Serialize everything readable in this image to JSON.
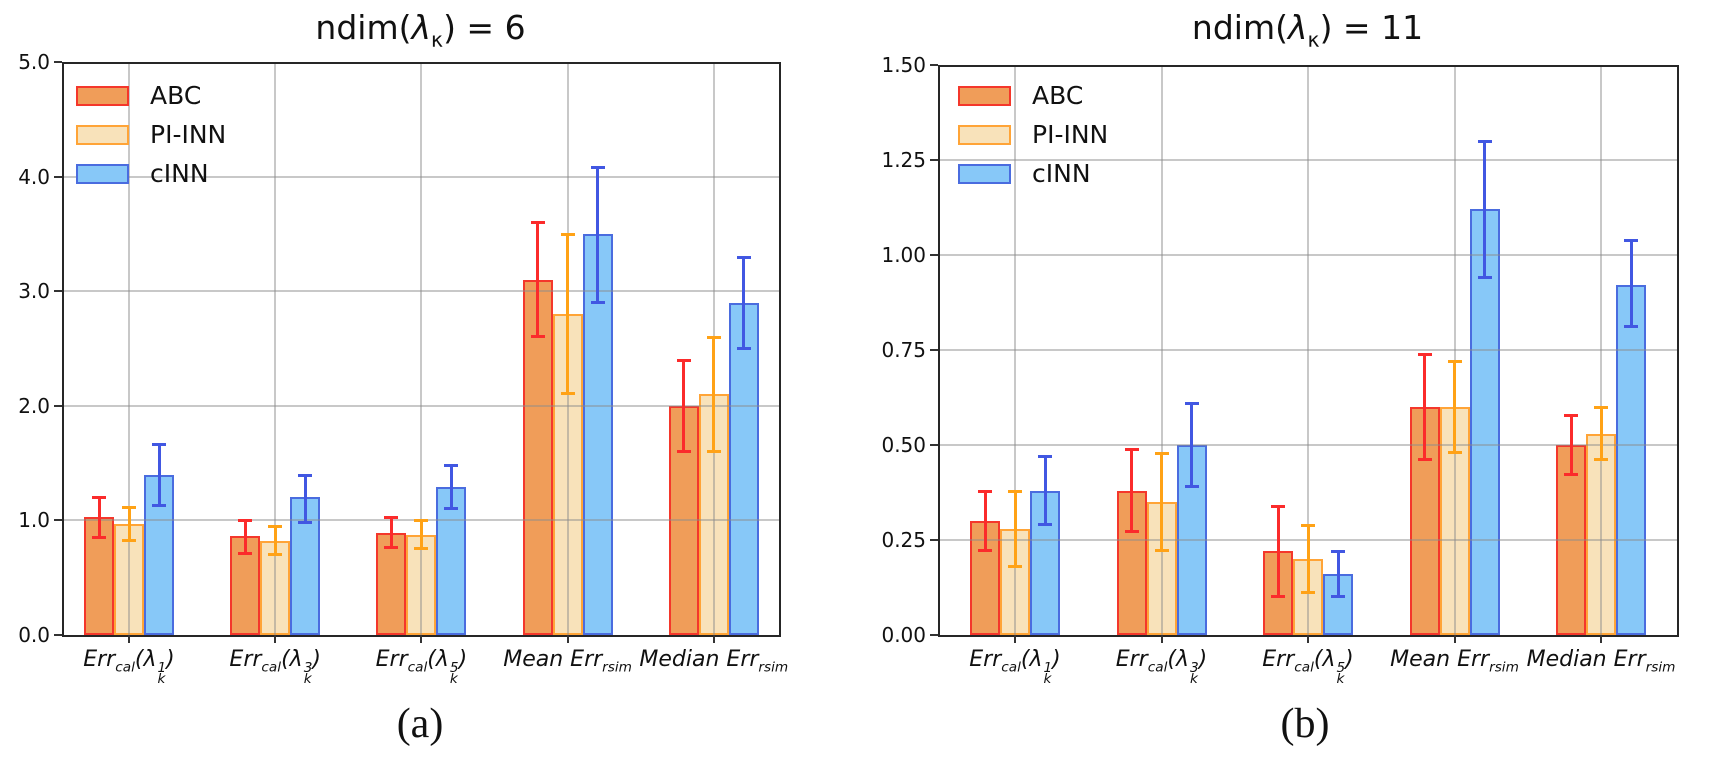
{
  "chart_data": [
    {
      "type": "bar",
      "title": "ndim(λ_{κ}) = 6",
      "caption": "(a)",
      "categories": [
        "Err_{cal}(λ_{k}^{1})",
        "Err_{cal}(λ_{k}^{3})",
        "Err_{cal}(λ_{k}^{5})",
        "Mean Err_{rsim}",
        "Median Err_{rsim}"
      ],
      "xlabel": "",
      "ylabel": "",
      "ylim": [
        0,
        5.0
      ],
      "ytick_labels": [
        "0.0",
        "1.0",
        "2.0",
        "3.0",
        "4.0",
        "5.0"
      ],
      "grid": true,
      "legend_position": "upper left",
      "error_bars": true,
      "series": [
        {
          "name": "ABC",
          "values": [
            1.03,
            0.86,
            0.89,
            3.1,
            2.0
          ],
          "err_low": [
            0.85,
            0.71,
            0.76,
            2.6,
            1.6
          ],
          "err_high": [
            1.2,
            1.0,
            1.03,
            3.6,
            2.4
          ]
        },
        {
          "name": "PI-INN",
          "values": [
            0.97,
            0.82,
            0.87,
            2.8,
            2.1
          ],
          "err_low": [
            0.82,
            0.7,
            0.75,
            2.1,
            1.6
          ],
          "err_high": [
            1.12,
            0.95,
            1.0,
            3.5,
            2.6
          ]
        },
        {
          "name": "cINN",
          "values": [
            1.4,
            1.2,
            1.29,
            3.5,
            2.9
          ],
          "err_low": [
            1.13,
            0.98,
            1.1,
            2.9,
            2.5
          ],
          "err_high": [
            1.67,
            1.4,
            1.48,
            4.08,
            3.3
          ]
        }
      ]
    },
    {
      "type": "bar",
      "title": "ndim(λ_{κ}) = 11",
      "caption": "(b)",
      "categories": [
        "Err_{cal}(λ_{k}^{1})",
        "Err_{cal}(λ_{k}^{3})",
        "Err_{cal}(λ_{k}^{5})",
        "Mean Err_{rsim}",
        "Median Err_{rsim}"
      ],
      "xlabel": "",
      "ylabel": "",
      "ylim": [
        0,
        1.5
      ],
      "ytick_labels": [
        "0.00",
        "0.25",
        "0.50",
        "0.75",
        "1.00",
        "1.25",
        "1.50"
      ],
      "grid": true,
      "legend_position": "upper left",
      "error_bars": true,
      "series": [
        {
          "name": "ABC",
          "values": [
            0.3,
            0.38,
            0.22,
            0.6,
            0.5
          ],
          "err_low": [
            0.22,
            0.27,
            0.1,
            0.46,
            0.42
          ],
          "err_high": [
            0.38,
            0.49,
            0.34,
            0.74,
            0.58
          ]
        },
        {
          "name": "PI-INN",
          "values": [
            0.28,
            0.35,
            0.2,
            0.6,
            0.53
          ],
          "err_low": [
            0.18,
            0.22,
            0.11,
            0.48,
            0.46
          ],
          "err_high": [
            0.38,
            0.48,
            0.29,
            0.72,
            0.6
          ]
        },
        {
          "name": "cINN",
          "values": [
            0.38,
            0.5,
            0.16,
            1.12,
            0.92
          ],
          "err_low": [
            0.29,
            0.39,
            0.1,
            0.94,
            0.81
          ],
          "err_high": [
            0.47,
            0.61,
            0.22,
            1.3,
            1.04
          ]
        }
      ]
    }
  ],
  "legend_labels": [
    "ABC",
    "PI-INN",
    "cINN"
  ],
  "styles": {
    "series": [
      {
        "name": "ABC",
        "fill": "#F09D59",
        "edge": "#F4372B",
        "error": "#FB2B2B"
      },
      {
        "name": "PI-INN",
        "fill": "#F8E2BA",
        "edge": "#FFA437",
        "error": "#FFA216"
      },
      {
        "name": "cINN",
        "fill": "#87C8F8",
        "edge": "#4A6CDF",
        "error": "#4157E2"
      }
    ],
    "gridline": "#c8c8c8",
    "spine": "#262626",
    "background": "#ffffff"
  }
}
